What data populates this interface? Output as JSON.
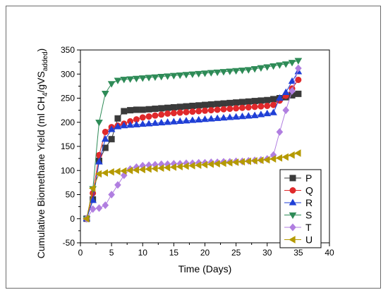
{
  "chart_data": {
    "type": "line",
    "title": "",
    "xlabel": "Time (Days)",
    "ylabel": {
      "text": "Cumulative Biomethane Yield (ml CH",
      "sub1": "4",
      "mid": "/gVS",
      "sub2": "added",
      "end": ")"
    },
    "xlim": [
      0,
      40
    ],
    "ylim": [
      -50,
      350
    ],
    "xticks": [
      0,
      5,
      10,
      15,
      20,
      25,
      30,
      35,
      40
    ],
    "yticks": [
      -50,
      0,
      50,
      100,
      150,
      200,
      250,
      300,
      350
    ],
    "grid": false,
    "legend_position": "bottom-right",
    "series": [
      {
        "name": "P",
        "color": "#3a3a3a",
        "marker": "square",
        "x": [
          1,
          2,
          3,
          4,
          5,
          6,
          7,
          8,
          9,
          10,
          11,
          12,
          13,
          14,
          15,
          16,
          17,
          18,
          19,
          20,
          21,
          22,
          23,
          24,
          25,
          26,
          27,
          28,
          29,
          30,
          31,
          32,
          33,
          34,
          35
        ],
        "y": [
          0,
          40,
          120,
          147,
          165,
          208,
          223,
          225,
          226,
          226,
          227,
          228,
          229,
          230,
          231,
          232,
          233,
          234,
          235,
          236,
          237,
          238,
          239,
          240,
          241,
          242,
          243,
          244,
          245,
          246,
          248,
          250,
          252,
          256,
          259
        ]
      },
      {
        "name": "Q",
        "color": "#e0292b",
        "marker": "circle",
        "x": [
          1,
          2,
          3,
          4,
          5,
          6,
          7,
          8,
          9,
          10,
          11,
          12,
          13,
          14,
          15,
          16,
          17,
          18,
          19,
          20,
          21,
          22,
          23,
          24,
          25,
          26,
          27,
          28,
          29,
          30,
          31,
          32,
          33,
          34,
          35
        ],
        "y": [
          0,
          53,
          132,
          180,
          190,
          193,
          197,
          202,
          206,
          210,
          212,
          214,
          216,
          218,
          219,
          220,
          221,
          222,
          223,
          224,
          225,
          226,
          227,
          228,
          229,
          230,
          231,
          232,
          233,
          234,
          236,
          245,
          255,
          270,
          288
        ]
      },
      {
        "name": "R",
        "color": "#1f3fd6",
        "marker": "triangle-up",
        "x": [
          1,
          2,
          3,
          4,
          5,
          6,
          7,
          8,
          9,
          10,
          11,
          12,
          13,
          14,
          15,
          16,
          17,
          18,
          19,
          20,
          21,
          22,
          23,
          24,
          25,
          26,
          27,
          28,
          29,
          30,
          31,
          32,
          33,
          34,
          35
        ],
        "y": [
          0,
          38,
          118,
          165,
          185,
          191,
          193,
          194,
          195,
          196,
          197,
          198,
          199,
          200,
          201,
          202,
          203,
          204,
          205,
          206,
          207,
          208,
          209,
          210,
          211,
          212,
          213,
          214,
          216,
          218,
          220,
          250,
          262,
          285,
          305
        ]
      },
      {
        "name": "S",
        "color": "#2e8b57",
        "marker": "triangle-down",
        "x": [
          1,
          2,
          3,
          4,
          5,
          6,
          7,
          8,
          9,
          10,
          11,
          12,
          13,
          14,
          15,
          16,
          17,
          18,
          19,
          20,
          21,
          22,
          23,
          24,
          25,
          26,
          27,
          28,
          29,
          30,
          31,
          32,
          33,
          34,
          35
        ],
        "y": [
          0,
          62,
          200,
          260,
          280,
          287,
          289,
          290,
          291,
          292,
          293,
          294,
          295,
          296,
          297,
          298,
          299,
          300,
          301,
          302,
          303,
          304,
          305,
          306,
          307,
          308,
          309,
          311,
          313,
          315,
          317,
          319,
          321,
          324,
          328
        ]
      },
      {
        "name": "T",
        "color": "#b07ee0",
        "marker": "diamond",
        "x": [
          1,
          2,
          3,
          4,
          5,
          6,
          7,
          8,
          9,
          10,
          11,
          12,
          13,
          14,
          15,
          16,
          17,
          18,
          19,
          20,
          21,
          22,
          23,
          24,
          25,
          26,
          27,
          28,
          29,
          30,
          31,
          32,
          33,
          34,
          35
        ],
        "y": [
          0,
          20,
          22,
          28,
          50,
          70,
          90,
          103,
          107,
          110,
          111,
          112,
          113,
          113,
          114,
          114,
          115,
          115,
          116,
          116,
          117,
          117,
          118,
          118,
          119,
          119,
          120,
          121,
          122,
          124,
          132,
          180,
          225,
          265,
          312
        ]
      },
      {
        "name": "U",
        "color": "#b59a00",
        "marker": "triangle-left",
        "x": [
          1,
          2,
          3,
          4,
          5,
          6,
          7,
          8,
          9,
          10,
          11,
          12,
          13,
          14,
          15,
          16,
          17,
          18,
          19,
          20,
          21,
          22,
          23,
          24,
          25,
          26,
          27,
          28,
          29,
          30,
          31,
          32,
          33,
          34,
          35
        ],
        "y": [
          0,
          63,
          93,
          95,
          97,
          98,
          99,
          100,
          101,
          102,
          103,
          104,
          105,
          106,
          107,
          108,
          109,
          110,
          111,
          112,
          113,
          114,
          115,
          116,
          117,
          118,
          119,
          120,
          121,
          122,
          124,
          126,
          128,
          132,
          136
        ]
      }
    ]
  }
}
